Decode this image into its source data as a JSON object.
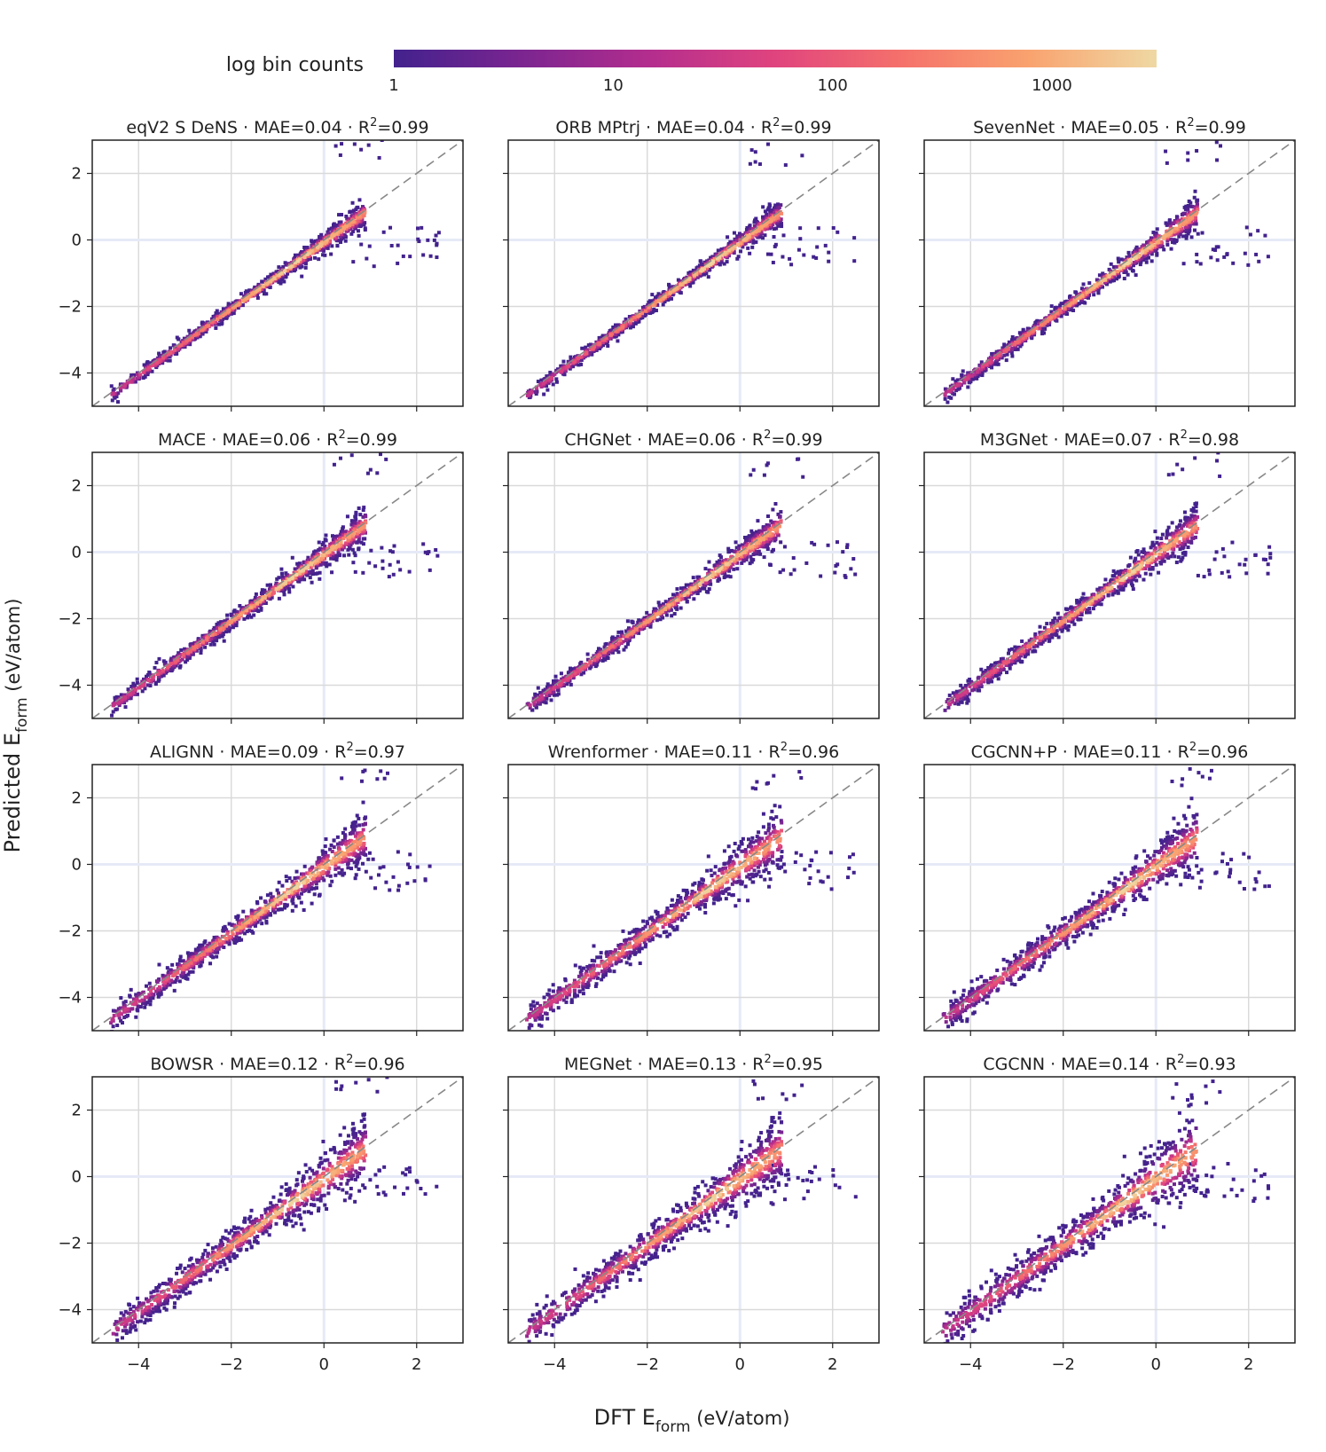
{
  "colorbar": {
    "title": "log bin counts",
    "ticks": [
      "1",
      "10",
      "100",
      "1000"
    ],
    "tick_values": [
      1,
      10,
      100,
      1000
    ],
    "max_value": 3000,
    "scale": "log",
    "colors": [
      "#42228d",
      "#7b2590",
      "#b32d8e",
      "#e0447e",
      "#f5716b",
      "#f9a36f",
      "#efd8a3"
    ]
  },
  "axes": {
    "xlabel": "DFT E",
    "xlabel_sub": "form",
    "xlabel_unit": " (eV/atom)",
    "ylabel": "Predicted E",
    "ylabel_sub": "form",
    "ylabel_unit": " (eV/atom)"
  },
  "chart_data": {
    "type": "scatter",
    "subtype": "hexbin density parity plot",
    "xlim": [
      -5,
      3
    ],
    "ylim": [
      -5,
      3
    ],
    "xticks": [
      -4,
      -2,
      0,
      2
    ],
    "yticks": [
      -4,
      -2,
      0,
      2
    ],
    "xtick_labels": [
      "−4",
      "−2",
      "0",
      "2"
    ],
    "ytick_labels": [
      "−4",
      "−2",
      "0",
      "2"
    ],
    "diagonal": "y = x dashed gray reference line",
    "panels": [
      {
        "model": "eqV2 S DeNS",
        "mae": "0.04",
        "r2": "0.99",
        "spread": 0.1
      },
      {
        "model": "ORB MPtrj",
        "mae": "0.04",
        "r2": "0.99",
        "spread": 0.1
      },
      {
        "model": "SevenNet",
        "mae": "0.05",
        "r2": "0.99",
        "spread": 0.12
      },
      {
        "model": "MACE",
        "mae": "0.06",
        "r2": "0.99",
        "spread": 0.13
      },
      {
        "model": "CHGNet",
        "mae": "0.06",
        "r2": "0.99",
        "spread": 0.13
      },
      {
        "model": "M3GNet",
        "mae": "0.07",
        "r2": "0.98",
        "spread": 0.15
      },
      {
        "model": "ALIGNN",
        "mae": "0.09",
        "r2": "0.97",
        "spread": 0.19
      },
      {
        "model": "Wrenformer",
        "mae": "0.11",
        "r2": "0.96",
        "spread": 0.22
      },
      {
        "model": "CGCNN+P",
        "mae": "0.11",
        "r2": "0.96",
        "spread": 0.22
      },
      {
        "model": "BOWSR",
        "mae": "0.12",
        "r2": "0.96",
        "spread": 0.24
      },
      {
        "model": "MEGNet",
        "mae": "0.13",
        "r2": "0.95",
        "spread": 0.26
      },
      {
        "model": "CGCNN",
        "mae": "0.14",
        "r2": "0.93",
        "spread": 0.3
      }
    ]
  }
}
